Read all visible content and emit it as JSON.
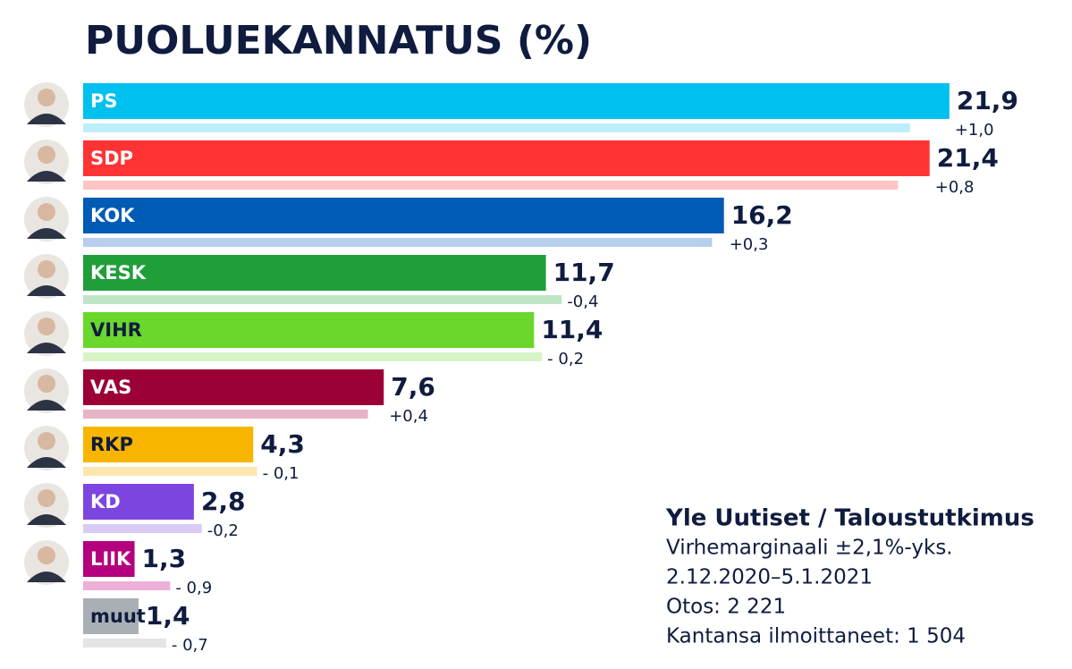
{
  "chart_data": {
    "type": "hbar",
    "title": "PUOLUEKANNATUS (%)",
    "categories": [
      "PS",
      "SDP",
      "KOK",
      "KESK",
      "VIHR",
      "VAS",
      "RKP",
      "KD",
      "LIIK",
      "muut"
    ],
    "series": [
      {
        "values": [
          21.9,
          21.4,
          16.2,
          11.7,
          11.4,
          7.6,
          4.3,
          2.8,
          1.3,
          1.4
        ],
        "value_labels": [
          "21,9",
          "21,4",
          "16,2",
          "11,7",
          "11,4",
          "7,6",
          "4,3",
          "2,8",
          "1,3",
          "1,4"
        ],
        "colors": [
          "#00c0ef",
          "#ff3333",
          "#005bb5",
          "#1f9e3a",
          "#6ad72c",
          "#9b0036",
          "#f7b500",
          "#7d45e0",
          "#b4007e",
          "#a9afb4"
        ]
      },
      {
        "values": [
          20.9,
          20.6,
          15.9,
          12.1,
          11.6,
          7.2,
          4.4,
          3.0,
          2.2,
          2.1
        ],
        "colors": [
          "#bdeefb",
          "#ffc4c4",
          "#b7cfec",
          "#bfe5c6",
          "#d6f4c6",
          "#e6b3c7",
          "#fde7b0",
          "#d9cbf6",
          "#ecb0d8",
          "#e2e4e6"
        ]
      }
    ],
    "changes": {
      "values": [
        1.0,
        0.8,
        0.3,
        -0.4,
        -0.2,
        0.4,
        -0.1,
        -0.2,
        -0.9,
        -0.7
      ],
      "labels": [
        "+1,0",
        "+0,8",
        "+0,3",
        "-0,4",
        "- 0,2",
        "+0,4",
        "- 0,1",
        "-0,2",
        "- 0,9",
        "- 0,7"
      ]
    },
    "xlim": [
      0,
      25
    ],
    "source": "Yle Uutiset / Taloustutkimus",
    "notes": [
      "Virhemarginaali ±2,1%-yks.",
      "2.12.2020–5.1.2021",
      "Otos: 2 221",
      "Kantansa ilmoittaneet: 1 504"
    ]
  }
}
